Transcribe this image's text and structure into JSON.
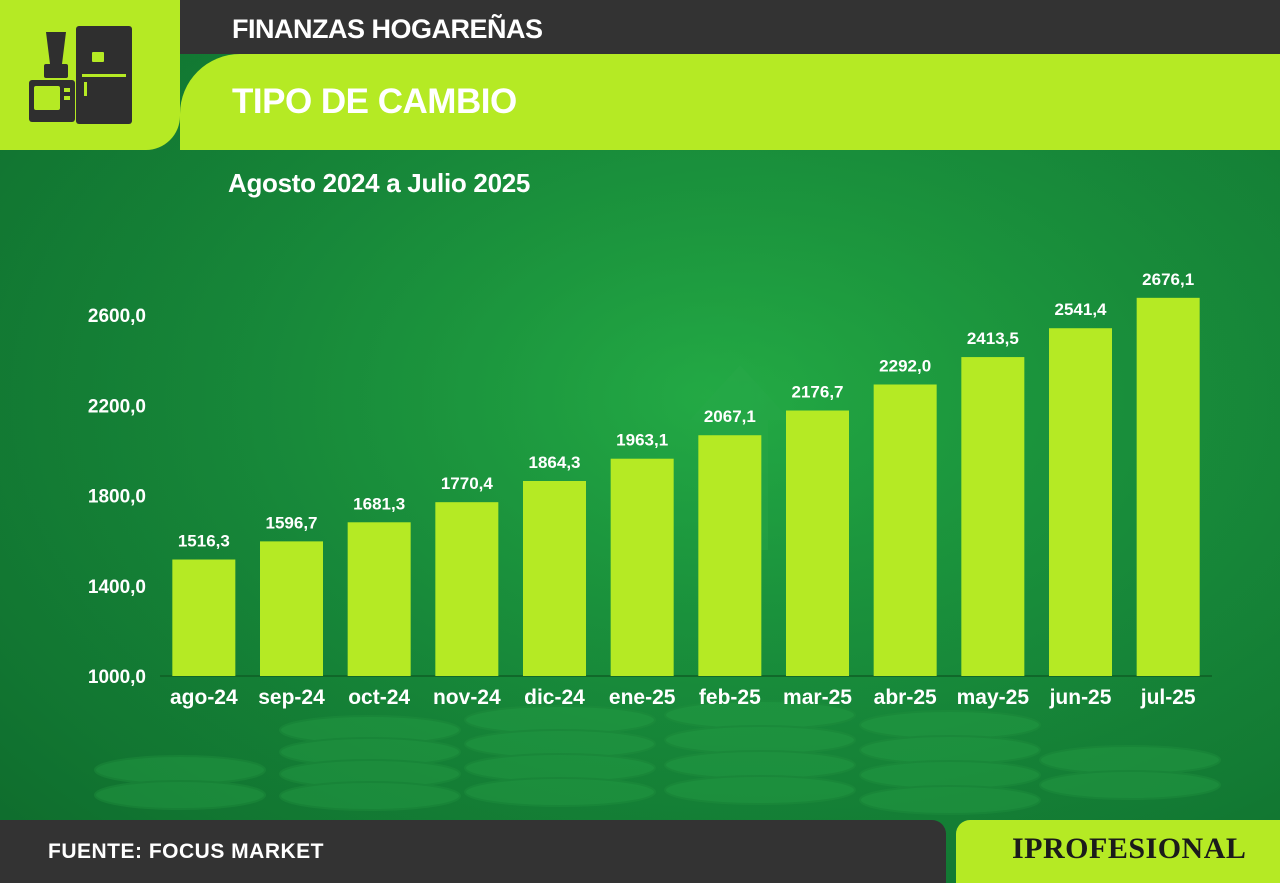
{
  "header": {
    "section": "FINANZAS HOGAREÑAS",
    "title": "TIPO DE CAMBIO",
    "icon": "home-appliances-icon"
  },
  "chart_data": {
    "type": "bar",
    "title": "",
    "subtitle": "Agosto 2024 a Julio 2025",
    "categories": [
      "ago-24",
      "sep-24",
      "oct-24",
      "nov-24",
      "dic-24",
      "ene-25",
      "feb-25",
      "mar-25",
      "abr-25",
      "may-25",
      "jun-25",
      "jul-25"
    ],
    "values": [
      1516.3,
      1596.7,
      1681.3,
      1770.4,
      1864.3,
      1963.1,
      2067.1,
      2176.7,
      2292.0,
      2413.5,
      2541.4,
      2676.1
    ],
    "value_labels": [
      "1516,3",
      "1596,7",
      "1681,3",
      "1770,4",
      "1864,3",
      "1963,1",
      "2067,1",
      "2176,7",
      "2292,0",
      "2413,5",
      "2541,4",
      "2676,1"
    ],
    "yticks": [
      1000,
      1400,
      1800,
      2200,
      2600
    ],
    "ytick_labels": [
      "1000,0",
      "1400,0",
      "1800,0",
      "2200,0",
      "2600,0"
    ],
    "ylim": [
      1000,
      2800
    ],
    "xlabel": "",
    "ylabel": "",
    "grid": false,
    "bar_color": "#b5ea24",
    "label_color": "#ffffff"
  },
  "footer": {
    "source": "FUENTE: FOCUS MARKET",
    "brand": "IPROFESIONAL"
  },
  "colors": {
    "accent": "#b5ea24",
    "dark": "#333333",
    "background": "#17893a"
  }
}
